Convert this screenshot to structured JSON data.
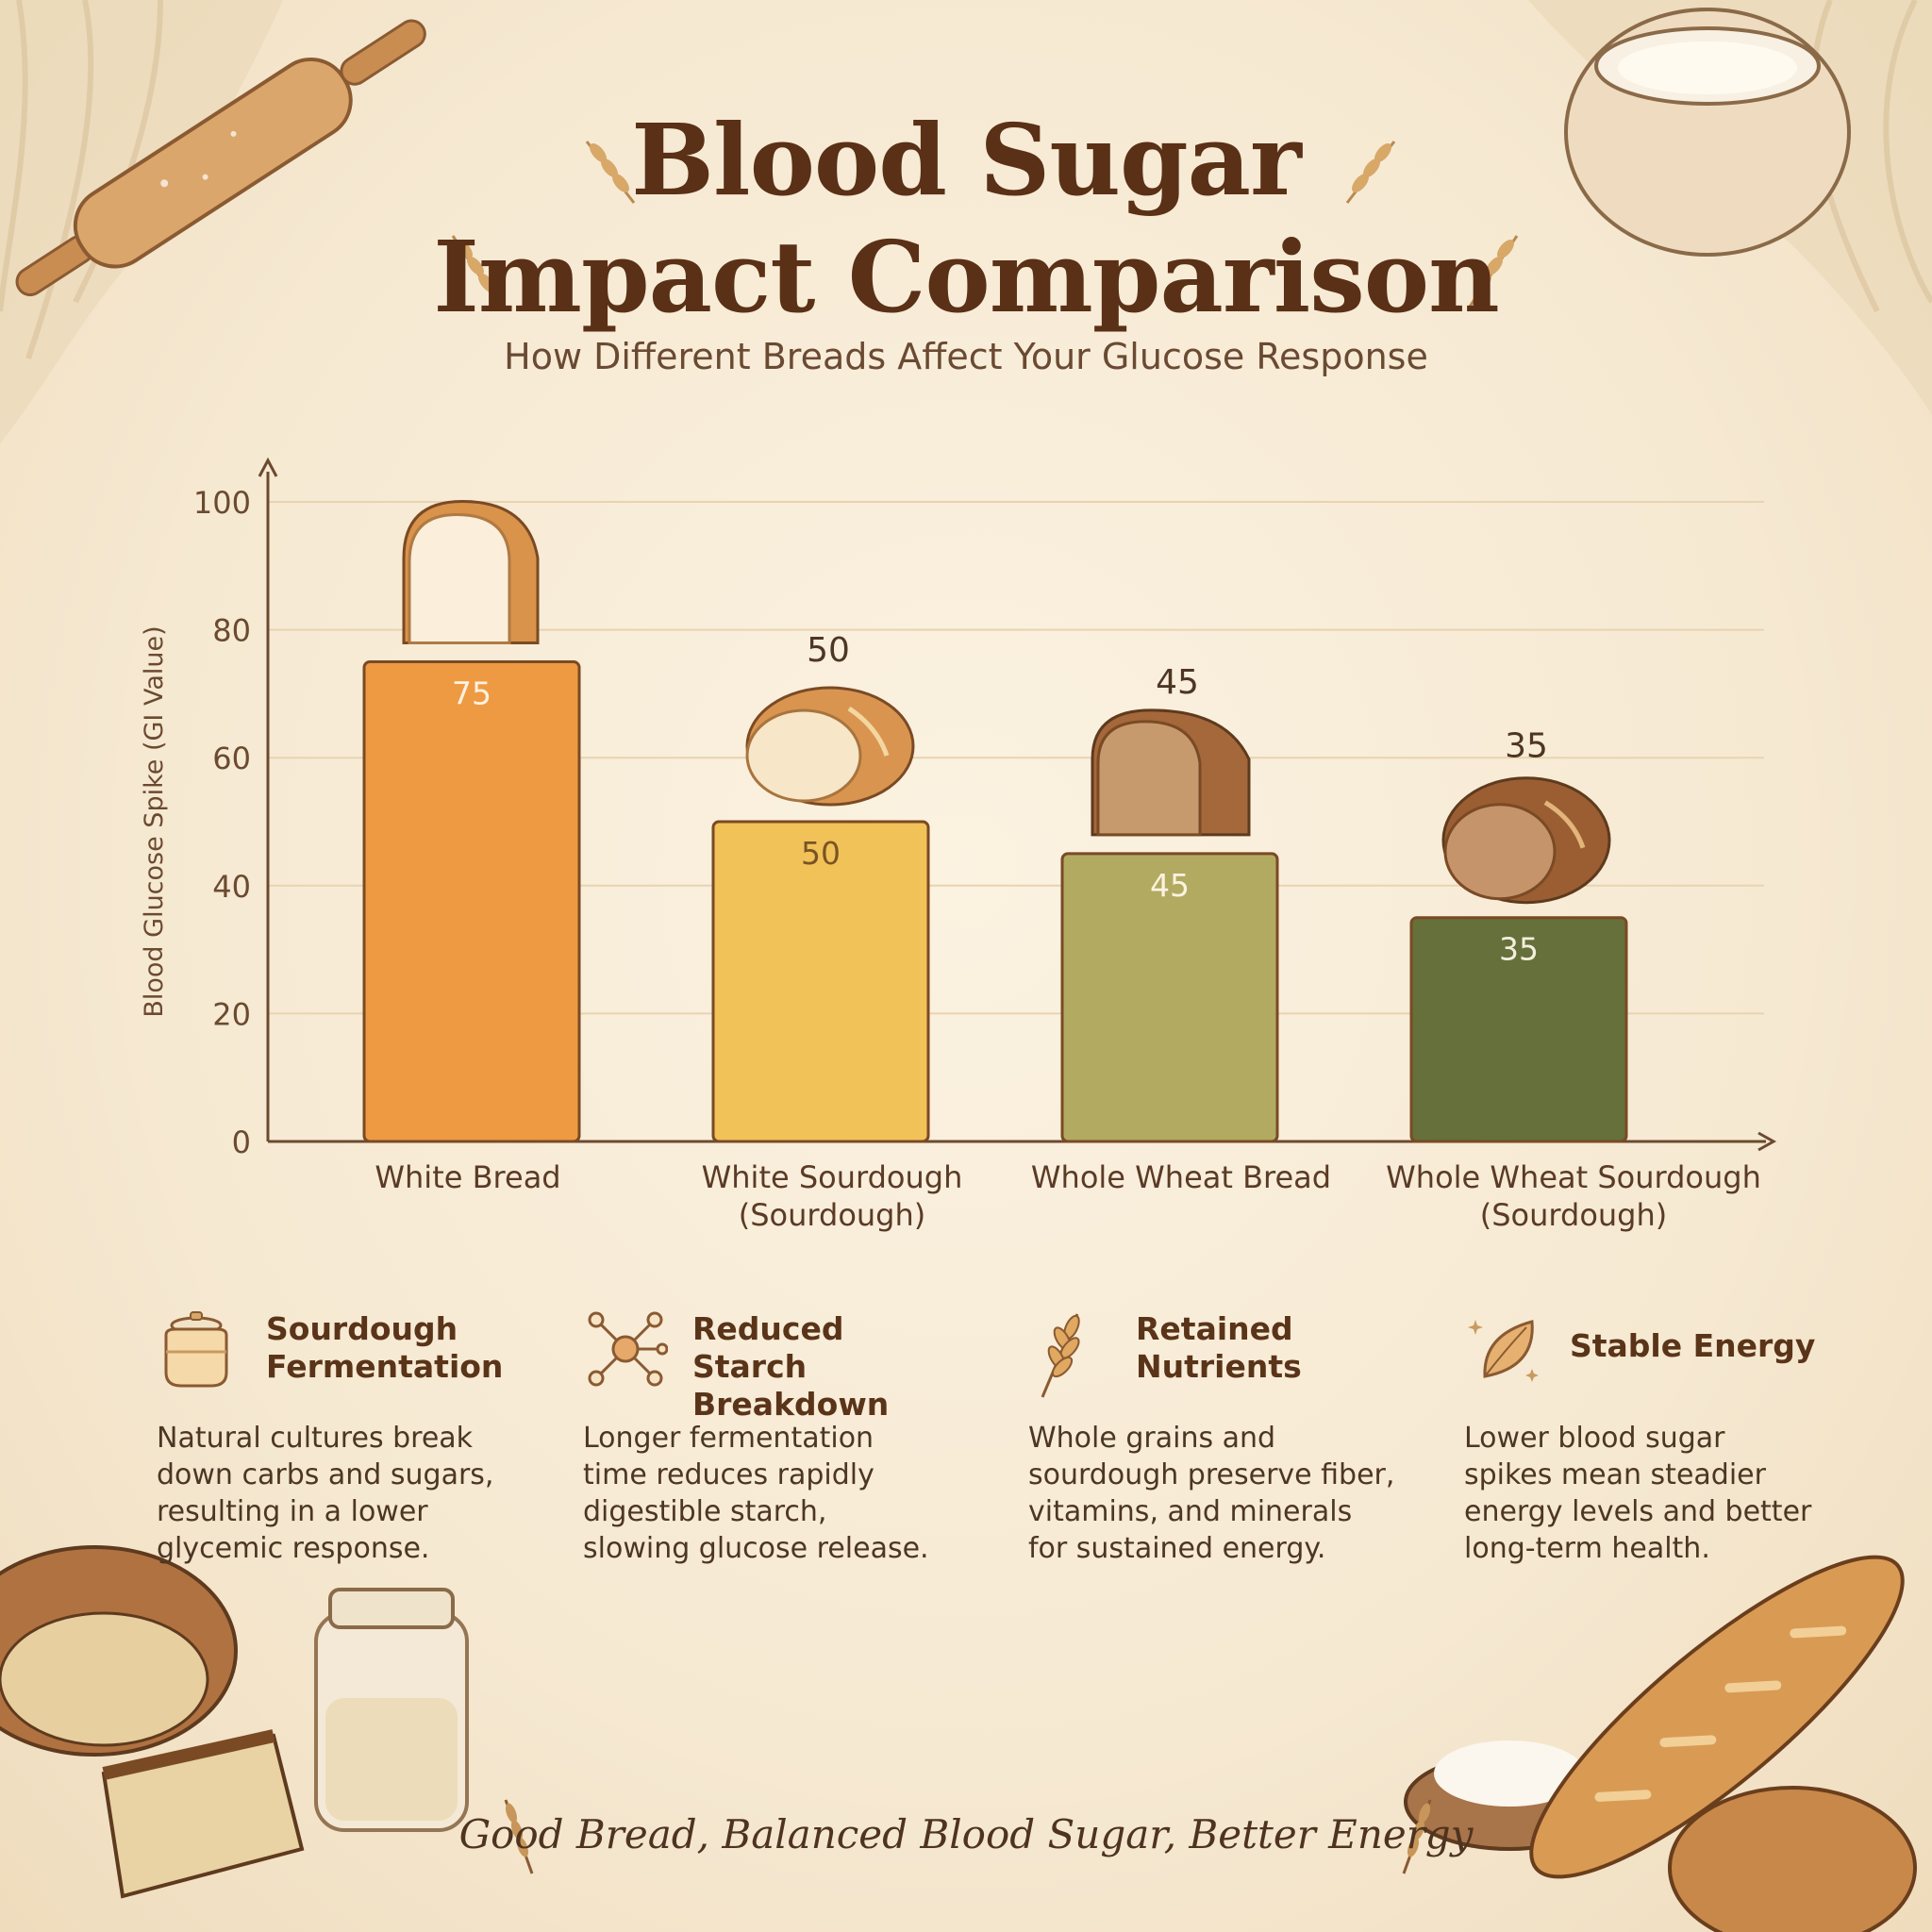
{
  "title_line1": "Blood Sugar",
  "title_line2": "Impact Comparison",
  "subtitle": "How Different Breads Affect Your Glucose Response",
  "chart_data": {
    "type": "bar",
    "title": "",
    "ylabel": "Blood Glucose Spike (GI Value)",
    "xlabel": "",
    "ylim": [
      0,
      100
    ],
    "yticks": [
      0,
      20,
      40,
      60,
      80,
      100
    ],
    "grid": true,
    "categories": [
      [
        "White Bread"
      ],
      [
        "White Sourdough",
        "(Sourdough)"
      ],
      [
        "Whole Wheat Bread"
      ],
      [
        "Whole Wheat Sourdough",
        "(Sourdough)"
      ]
    ],
    "values": [
      75,
      50,
      45,
      35
    ],
    "bar_colors": [
      "#ee9a42",
      "#f1c258",
      "#b2aa60",
      "#66703a"
    ],
    "inside_label_colors": [
      "#fdf1df",
      "#7a5426",
      "#fbf3e0",
      "#f3efdf"
    ],
    "top_labels_shown": [
      false,
      true,
      true,
      true
    ],
    "bar_icons": [
      "sandwich-loaf-icon",
      "sourdough-boule-icon",
      "whole-wheat-loaf-icon",
      "whole-wheat-boule-icon"
    ]
  },
  "features": [
    {
      "icon": "starter-crock-icon",
      "title_lines": [
        "Sourdough",
        "Fermentation"
      ],
      "text_lines": [
        "Natural cultures break",
        "down carbs and sugars,",
        "resulting in a lower",
        "glycemic response."
      ]
    },
    {
      "icon": "molecule-icon",
      "title_lines": [
        "Reduced Starch",
        "Breakdown"
      ],
      "text_lines": [
        "Longer fermentation",
        "time reduces rapidly",
        "digestible starch,",
        "slowing glucose release."
      ]
    },
    {
      "icon": "wheat-stalk-icon",
      "title_lines": [
        "Retained",
        "Nutrients"
      ],
      "text_lines": [
        "Whole grains and",
        "sourdough preserve fiber,",
        "vitamins, and minerals",
        "for sustained energy."
      ]
    },
    {
      "icon": "leaf-sparkle-icon",
      "title_lines": [
        "Stable Energy"
      ],
      "text_lines": [
        "Lower blood sugar",
        "spikes mean steadier",
        "energy levels and better",
        "long-term health."
      ]
    }
  ],
  "tagline": "Good Bread, Balanced Blood Sugar, Better Energy",
  "colors": {
    "title": "#5a3017",
    "axis": "#6b4a30",
    "gridline": "#e8d3b2",
    "background": "#f6ead4"
  }
}
